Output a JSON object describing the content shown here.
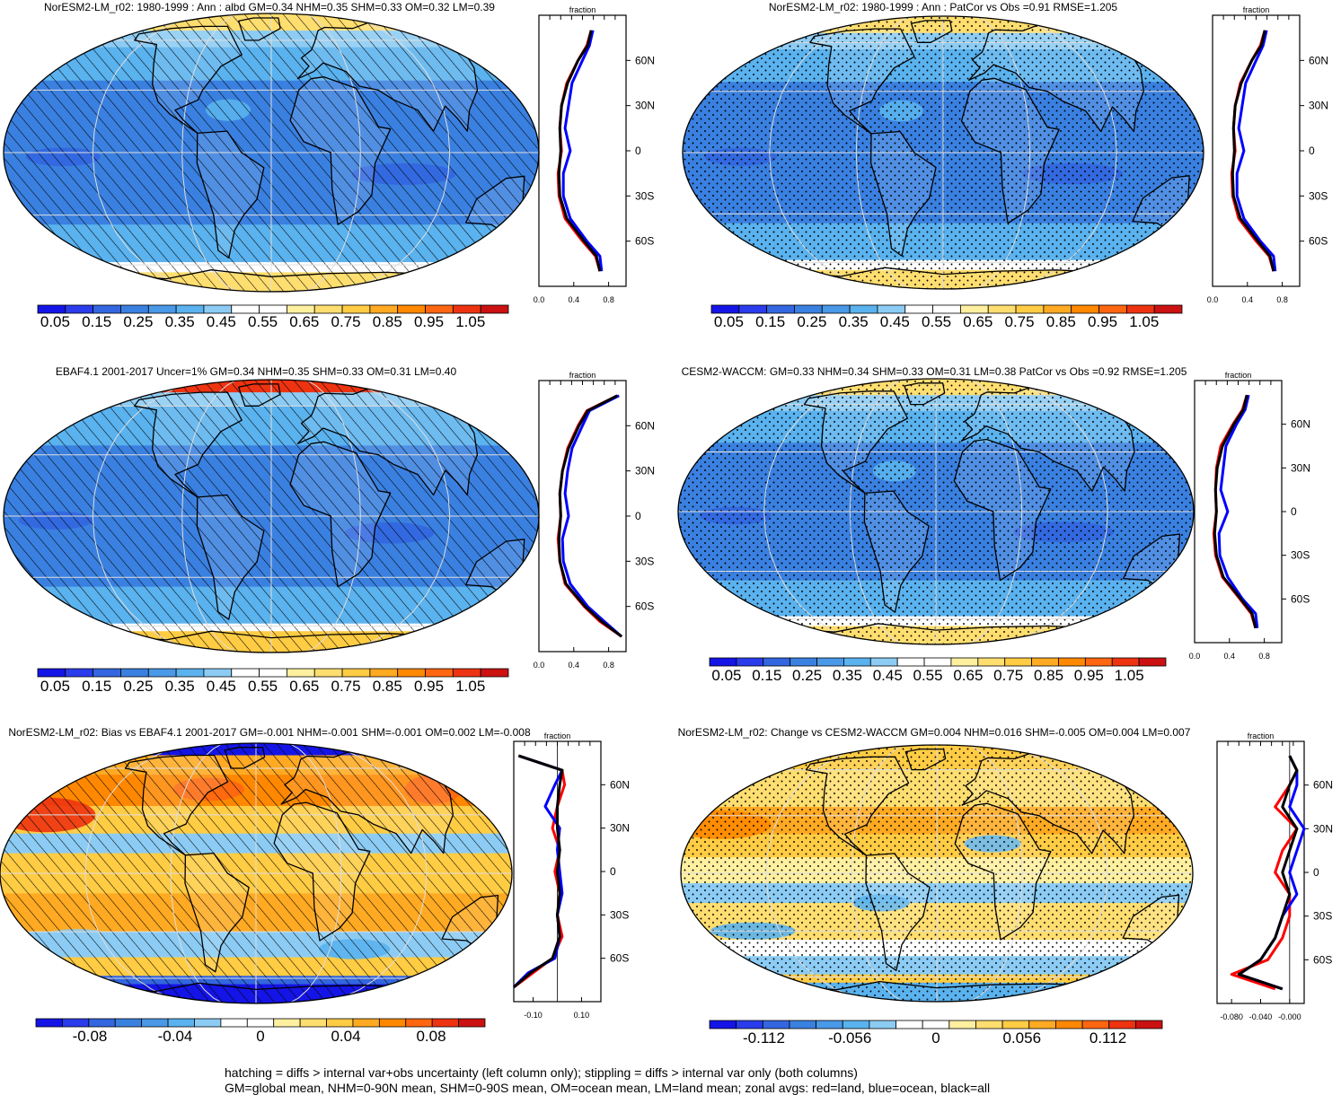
{
  "colors": {
    "ramp": [
      "#1414e6",
      "#2a3cec",
      "#3366e0",
      "#3a80e0",
      "#4a98e8",
      "#5ab2ee",
      "#8cccf4",
      "#ffffff",
      "#ffffff",
      "#fff0a0",
      "#ffde70",
      "#ffcc44",
      "#ffaa22",
      "#ff8800",
      "#ff6611",
      "#ee3311",
      "#cc1111"
    ],
    "land_line": "#ff0000",
    "ocean_line": "#0000ff",
    "all_line": "#000000"
  },
  "panels": [
    {
      "id": "model-albedo",
      "title": "NorESM2-LM_r02: 1980-1999 : Ann : albd GM=0.34 NHM=0.35 SHM=0.33 OM=0.32 LM=0.39",
      "overlay": "hatch",
      "field": "albedo",
      "colorbar_labels": [
        "0.05",
        "0.15",
        "0.25",
        "0.35",
        "0.45",
        "0.55",
        "0.65",
        "0.75",
        "0.85",
        "0.95",
        "1.05"
      ],
      "zonal_title": "fraction",
      "zonal_xticks": [
        "0.0",
        "0.4",
        "0.8"
      ],
      "zonal_yticks": [
        "60N",
        "30N",
        "0",
        "30S",
        "60S"
      ]
    },
    {
      "id": "model-patcor",
      "title": "NorESM2-LM_r02: 1980-1999 : Ann : PatCor vs Obs =0.91 RMSE=1.205",
      "overlay": "stipple",
      "field": "albedo",
      "colorbar_labels": [
        "0.05",
        "0.15",
        "0.25",
        "0.35",
        "0.45",
        "0.55",
        "0.65",
        "0.75",
        "0.85",
        "0.95",
        "1.05"
      ],
      "zonal_title": "fraction",
      "zonal_xticks": [
        "0.0",
        "0.4",
        "0.8"
      ],
      "zonal_yticks": [
        "60N",
        "30N",
        "0",
        "30S",
        "60S"
      ]
    },
    {
      "id": "obs-ebaf",
      "title": "EBAF4.1 2001-2017 Uncer=1% GM=0.34 NHM=0.35 SHM=0.33 OM=0.31 LM=0.40",
      "overlay": "hatch",
      "field": "albedo-obs",
      "colorbar_labels": [
        "0.05",
        "0.15",
        "0.25",
        "0.35",
        "0.45",
        "0.55",
        "0.65",
        "0.75",
        "0.85",
        "0.95",
        "1.05"
      ],
      "zonal_title": "fraction",
      "zonal_xticks": [
        "0.0",
        "0.4",
        "0.8"
      ],
      "zonal_yticks": [
        "60N",
        "30N",
        "0",
        "30S",
        "60S"
      ]
    },
    {
      "id": "cesm2-waccm",
      "title": "CESM2-WACCM: GM=0.33 NHM=0.34 SHM=0.33 OM=0.31 LM=0.38 PatCor vs Obs =0.92 RMSE=1.205",
      "overlay": "stipple",
      "field": "albedo",
      "colorbar_labels": [
        "0.05",
        "0.15",
        "0.25",
        "0.35",
        "0.45",
        "0.55",
        "0.65",
        "0.75",
        "0.85",
        "0.95",
        "1.05"
      ],
      "zonal_title": "fraction",
      "zonal_xticks": [
        "0.0",
        "0.4",
        "0.8"
      ],
      "zonal_yticks": [
        "60N",
        "30N",
        "0",
        "30S",
        "60S"
      ]
    },
    {
      "id": "bias-vs-ebaf",
      "title": "NorESM2-LM_r02: Bias vs EBAF4.1 2001-2017 GM=-0.001 NHM=-0.001 SHM=-0.001 OM=0.002 LM=-0.008",
      "overlay": "hatch",
      "field": "bias",
      "colorbar_labels": [
        "-0.08",
        "-0.04",
        "0",
        "0.04",
        "0.08"
      ],
      "zonal_title": "fraction",
      "zonal_xticks": [
        "-0.10",
        "0.10"
      ],
      "zonal_yticks": [
        "60N",
        "30N",
        "0",
        "30S",
        "60S"
      ]
    },
    {
      "id": "change-vs-cesm2",
      "title": "NorESM2-LM_r02: Change vs CESM2-WACCM GM=0.004 NHM=0.016 SHM=-0.005 OM=0.004 LM=0.007",
      "overlay": "stipple",
      "field": "change",
      "colorbar_labels": [
        "-0.112",
        "-0.056",
        "0",
        "0.056",
        "0.112"
      ],
      "zonal_title": "fraction",
      "zonal_xticks": [
        "-0.080",
        "-0.040",
        "-0.000"
      ],
      "zonal_yticks": [
        "60N",
        "30N",
        "0",
        "30S",
        "60S"
      ]
    }
  ],
  "footer": {
    "line1": "hatching = diffs > internal var+obs uncertainty (left column only); stippling = diffs > internal var only (both columns)",
    "line2": "GM=global mean, NHM=0-90N mean, SHM=0-90S mean, OM=ocean mean, LM=land mean; zonal avgs: red=land, blue=ocean, black=all"
  },
  "chart_data": [
    {
      "type": "line",
      "title": "fraction",
      "x_ticks": [
        0.0,
        0.4,
        0.8
      ],
      "xlim": [
        0.0,
        1.0
      ],
      "y": [
        80,
        70,
        60,
        45,
        30,
        15,
        0,
        -15,
        -30,
        -45,
        -60,
        -70,
        -80
      ],
      "series": [
        {
          "values": [
            0.6,
            0.55,
            0.45,
            0.32,
            0.26,
            0.24,
            0.26,
            0.22,
            0.23,
            0.3,
            0.5,
            0.65,
            0.7
          ]
        },
        {
          "values": [
            0.62,
            0.58,
            0.5,
            0.38,
            0.34,
            0.3,
            0.36,
            0.28,
            0.28,
            0.36,
            0.55,
            0.7,
            0.72
          ]
        },
        {
          "values": [
            0.6,
            0.56,
            0.45,
            0.33,
            0.26,
            0.24,
            0.25,
            0.23,
            0.24,
            0.32,
            0.52,
            0.66,
            0.7
          ]
        }
      ]
    },
    {
      "type": "line",
      "title": "fraction",
      "x_ticks": [
        0.0,
        0.4,
        0.8
      ],
      "xlim": [
        0.0,
        1.0
      ],
      "y": [
        80,
        70,
        60,
        45,
        30,
        15,
        0,
        -15,
        -30,
        -45,
        -60,
        -70,
        -80
      ],
      "series": [
        {
          "values": [
            0.6,
            0.55,
            0.45,
            0.32,
            0.26,
            0.24,
            0.26,
            0.22,
            0.23,
            0.3,
            0.5,
            0.65,
            0.7
          ]
        },
        {
          "values": [
            0.62,
            0.58,
            0.5,
            0.38,
            0.34,
            0.3,
            0.36,
            0.28,
            0.28,
            0.36,
            0.55,
            0.7,
            0.72
          ]
        },
        {
          "values": [
            0.6,
            0.56,
            0.45,
            0.33,
            0.26,
            0.24,
            0.25,
            0.23,
            0.24,
            0.32,
            0.52,
            0.66,
            0.7
          ]
        }
      ]
    },
    {
      "type": "line",
      "title": "fraction",
      "x_ticks": [
        0.0,
        0.4,
        0.8
      ],
      "xlim": [
        0.0,
        1.0
      ],
      "y": [
        80,
        70,
        60,
        45,
        30,
        15,
        0,
        -15,
        -30,
        -45,
        -60,
        -70,
        -80
      ],
      "series": [
        {
          "values": [
            0.9,
            0.55,
            0.45,
            0.33,
            0.27,
            0.24,
            0.25,
            0.22,
            0.24,
            0.3,
            0.52,
            0.7,
            0.95
          ]
        },
        {
          "values": [
            0.92,
            0.58,
            0.5,
            0.38,
            0.33,
            0.3,
            0.34,
            0.27,
            0.28,
            0.36,
            0.56,
            0.75,
            0.95
          ]
        },
        {
          "values": [
            0.9,
            0.56,
            0.46,
            0.34,
            0.27,
            0.24,
            0.25,
            0.23,
            0.24,
            0.31,
            0.53,
            0.72,
            0.95
          ]
        }
      ]
    },
    {
      "type": "line",
      "title": "fraction",
      "x_ticks": [
        0.0,
        0.4,
        0.8
      ],
      "xlim": [
        0.0,
        1.0
      ],
      "y": [
        80,
        70,
        60,
        45,
        30,
        15,
        0,
        -15,
        -30,
        -45,
        -60,
        -70,
        -80
      ],
      "series": [
        {
          "values": [
            0.6,
            0.55,
            0.44,
            0.3,
            0.25,
            0.24,
            0.25,
            0.22,
            0.24,
            0.32,
            0.52,
            0.65,
            0.7
          ]
        },
        {
          "values": [
            0.62,
            0.58,
            0.48,
            0.36,
            0.33,
            0.3,
            0.38,
            0.28,
            0.29,
            0.38,
            0.55,
            0.7,
            0.72
          ]
        },
        {
          "values": [
            0.6,
            0.56,
            0.45,
            0.32,
            0.26,
            0.24,
            0.25,
            0.23,
            0.25,
            0.33,
            0.53,
            0.66,
            0.7
          ]
        }
      ]
    },
    {
      "type": "line",
      "title": "fraction",
      "x_ticks": [
        -0.1,
        0.1
      ],
      "xlim": [
        -0.18,
        0.18
      ],
      "y": [
        80,
        70,
        60,
        45,
        30,
        15,
        0,
        -15,
        -30,
        -45,
        -60,
        -70,
        -80
      ],
      "series": [
        {
          "values": [
            -0.16,
            0.02,
            0.03,
            0.0,
            -0.02,
            0.01,
            -0.01,
            0.01,
            0.0,
            0.02,
            -0.02,
            -0.1,
            -0.18
          ]
        },
        {
          "values": [
            -0.16,
            0.02,
            -0.01,
            -0.05,
            0.01,
            0.0,
            0.01,
            0.02,
            0.0,
            0.01,
            -0.01,
            -0.12,
            -0.18
          ]
        },
        {
          "values": [
            -0.16,
            0.02,
            0.01,
            0.0,
            0.0,
            0.01,
            0.0,
            0.01,
            0.0,
            0.01,
            -0.02,
            -0.11,
            -0.18
          ]
        }
      ]
    },
    {
      "type": "line",
      "title": "fraction",
      "x_ticks": [
        -0.08,
        -0.04,
        0.0
      ],
      "xlim": [
        -0.1,
        0.02
      ],
      "y": [
        80,
        70,
        60,
        45,
        30,
        15,
        0,
        -15,
        -30,
        -45,
        -60,
        -70,
        -80
      ],
      "series": [
        {
          "values": [
            0.0,
            0.01,
            0.0,
            -0.02,
            0.01,
            -0.01,
            -0.02,
            0.0,
            0.0,
            -0.01,
            -0.03,
            -0.08,
            -0.02
          ]
        },
        {
          "values": [
            0.0,
            0.01,
            0.01,
            0.0,
            0.02,
            0.01,
            0.0,
            0.01,
            -0.01,
            -0.02,
            -0.04,
            -0.07,
            -0.01
          ]
        },
        {
          "values": [
            0.0,
            0.01,
            0.0,
            -0.01,
            0.01,
            0.0,
            -0.01,
            0.0,
            -0.01,
            -0.02,
            -0.04,
            -0.07,
            -0.01
          ]
        }
      ]
    }
  ]
}
